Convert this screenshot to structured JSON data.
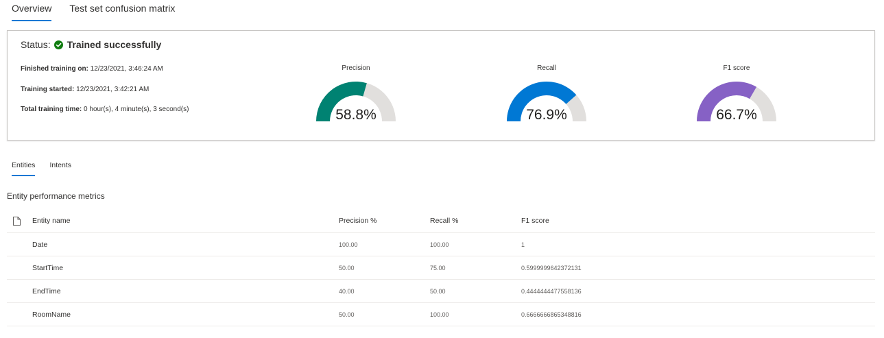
{
  "tabs": [
    {
      "label": "Overview",
      "active": true
    },
    {
      "label": "Test set confusion matrix",
      "active": false
    }
  ],
  "status": {
    "label": "Status:",
    "value": "Trained successfully",
    "icon": "check-circle-icon",
    "icon_color": "#107c10"
  },
  "training_info": {
    "finished_label": "Finished training on:",
    "finished_value": "12/23/2021, 3:46:24 AM",
    "started_label": "Training started:",
    "started_value": "12/23/2021, 3:42:21 AM",
    "total_label": "Total training time:",
    "total_value": "0 hour(s), 4 minute(s), 3 second(s)"
  },
  "gauges": [
    {
      "label": "Precision",
      "value_text": "58.8%",
      "fraction": 0.588,
      "color": "#008272"
    },
    {
      "label": "Recall",
      "value_text": "76.9%",
      "fraction": 0.769,
      "color": "#0078d4"
    },
    {
      "label": "F1 score",
      "value_text": "66.7%",
      "fraction": 0.667,
      "color": "#8661c5"
    }
  ],
  "gauge_track_color": "#e1dfdd",
  "sub_tabs": [
    {
      "label": "Entities",
      "active": true
    },
    {
      "label": "Intents",
      "active": false
    }
  ],
  "section_title": "Entity performance metrics",
  "table": {
    "header_icon": "document-icon",
    "columns": [
      "Entity name",
      "Precision %",
      "Recall %",
      "F1 score"
    ],
    "rows": [
      {
        "name": "Date",
        "precision": "100.00",
        "recall": "100.00",
        "f1": "1"
      },
      {
        "name": "StartTime",
        "precision": "50.00",
        "recall": "75.00",
        "f1": "0.5999999642372131"
      },
      {
        "name": "EndTime",
        "precision": "40.00",
        "recall": "50.00",
        "f1": "0.4444444477558136"
      },
      {
        "name": "RoomName",
        "precision": "50.00",
        "recall": "100.00",
        "f1": "0.6666666865348816"
      }
    ]
  }
}
